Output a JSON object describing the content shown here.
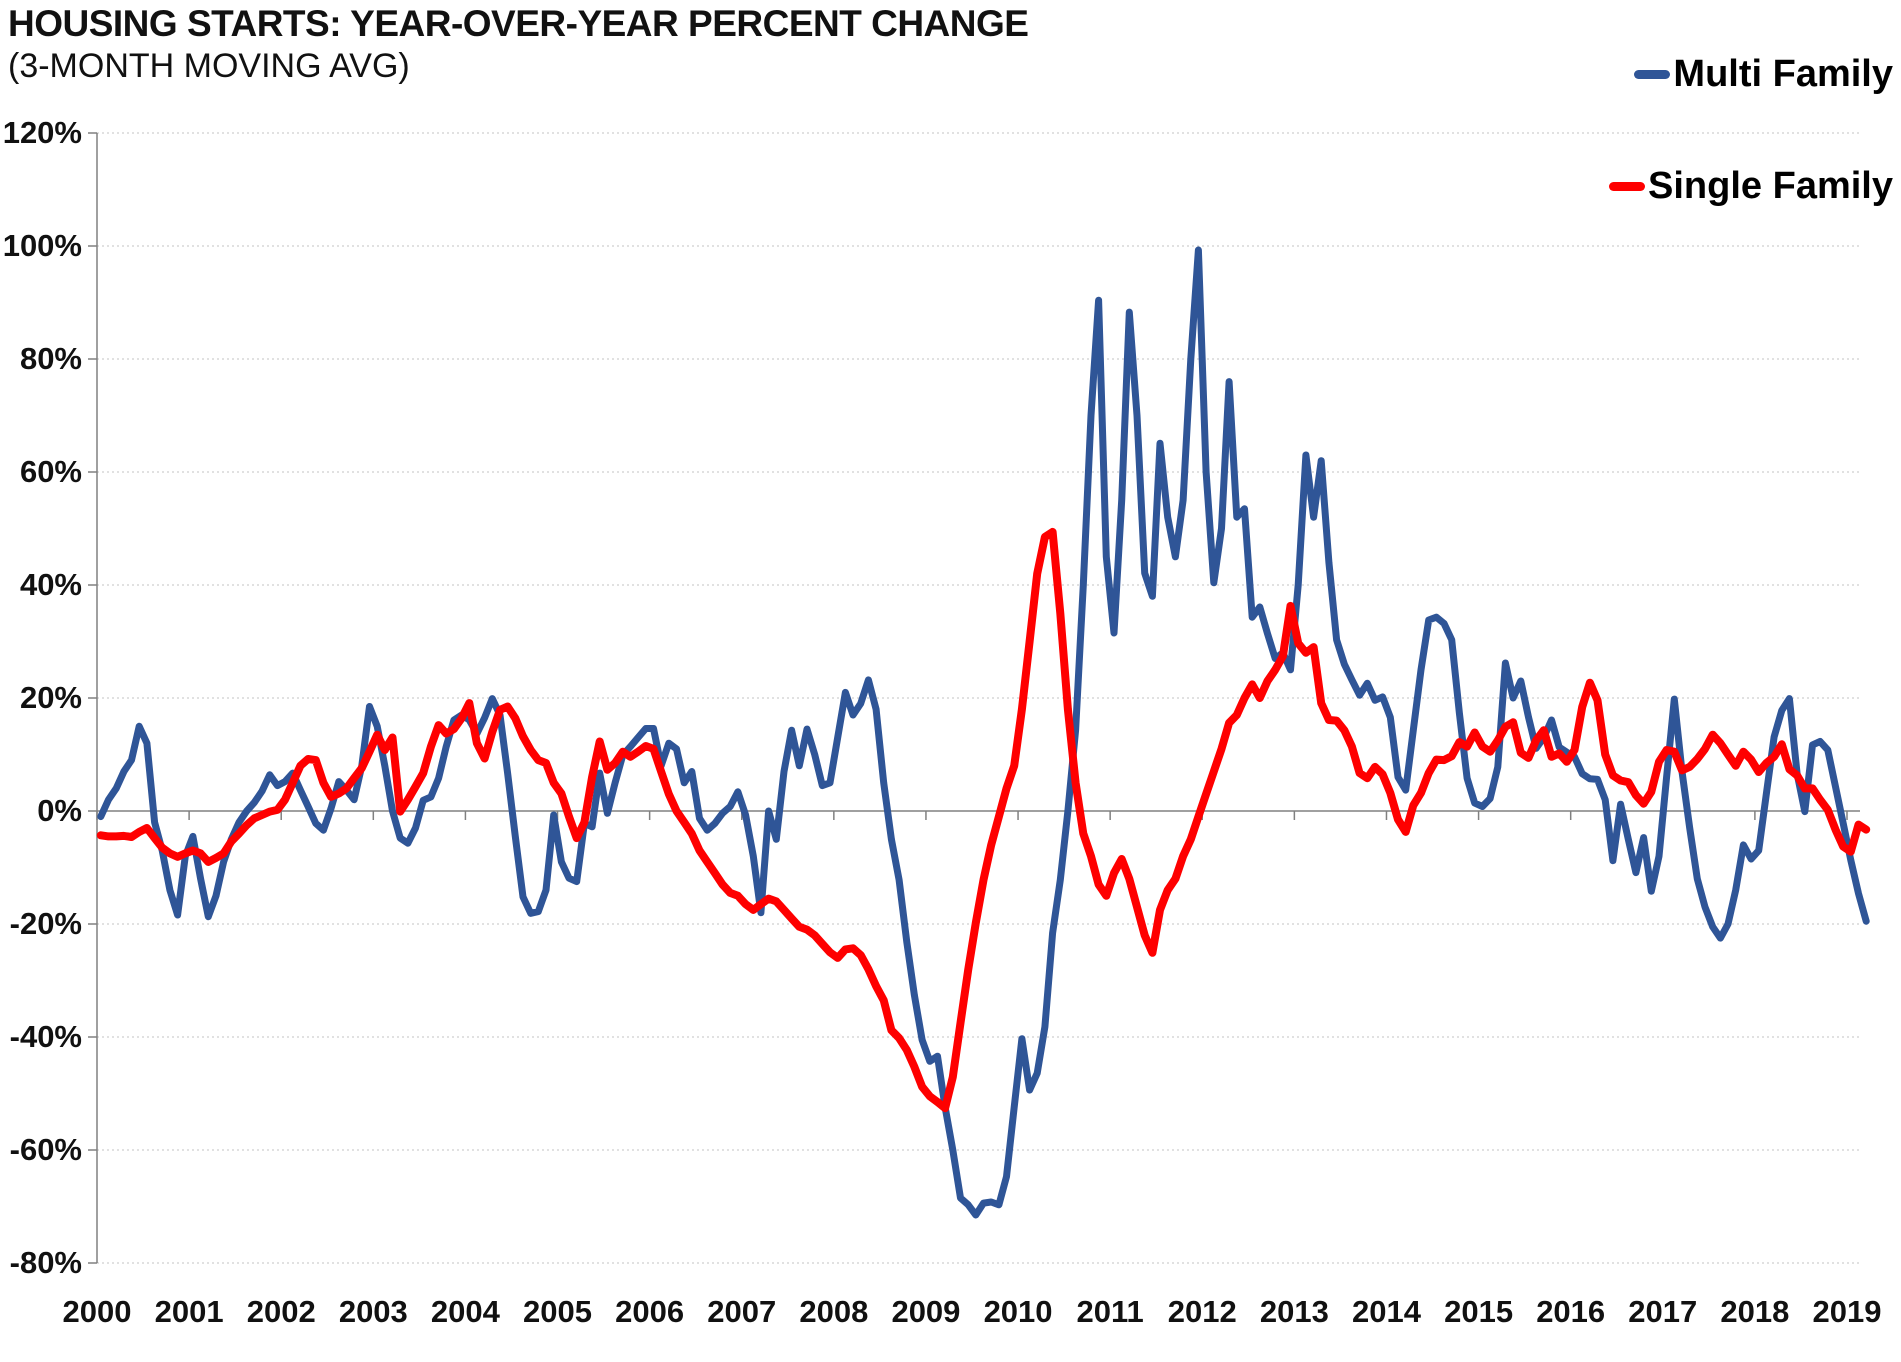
{
  "header": {
    "title": "HOUSING STARTS: YEAR-OVER-YEAR PERCENT CHANGE",
    "subtitle": "(3-MONTH MOVING AVG)"
  },
  "legend": {
    "items": [
      {
        "label": "Multi Family",
        "color": "#2F5597"
      },
      {
        "label": "Single Family",
        "color": "#FE0000"
      }
    ]
  },
  "chart_data": {
    "type": "line",
    "title": "HOUSING STARTS: YEAR-OVER-YEAR PERCENT CHANGE",
    "subtitle": "(3-MONTH MOVING AVG)",
    "x_frequency": "monthly",
    "x_start": "2000-01",
    "x_end": "2019-03",
    "x_tick_labels": [
      "2000",
      "2001",
      "2002",
      "2003",
      "2004",
      "2005",
      "2006",
      "2007",
      "2008",
      "2009",
      "2010",
      "2011",
      "2012",
      "2013",
      "2014",
      "2015",
      "2016",
      "2017",
      "2018",
      "2019"
    ],
    "y_tick_labels": [
      "120%",
      "100%",
      "80%",
      "60%",
      "40%",
      "20%",
      "0%",
      "-20%",
      "-40%",
      "-60%",
      "-80%"
    ],
    "y_tick_values": [
      120,
      100,
      80,
      60,
      40,
      20,
      0,
      -20,
      -40,
      -60,
      -80
    ],
    "ylim": [
      -80,
      120
    ],
    "grid": "horizontal-dotted",
    "zero_line": true,
    "legend_position": "top-right",
    "series": [
      {
        "name": "Multi Family",
        "color": "#2F5597",
        "width": 7,
        "values": [
          -1,
          2,
          4,
          7,
          9,
          15,
          12,
          -2,
          -7,
          -14,
          -18.4,
          -8,
          -4.5,
          -12,
          -18.7,
          -15,
          -9,
          -5,
          -2,
          0,
          1.5,
          3.5,
          6.4,
          4.5,
          5.2,
          6.7,
          3.7,
          0.8,
          -2.2,
          -3.4,
          0.5,
          5.2,
          3.7,
          2,
          8,
          18.5,
          15,
          8,
          0,
          -4.8,
          -5.7,
          -3,
          1.9,
          2.5,
          5.8,
          11.4,
          16.1,
          17,
          16.1,
          13.7,
          16.5,
          19.9,
          17,
          6.7,
          -4.5,
          -15.2,
          -18.1,
          -17.8,
          -14,
          -0.7,
          -9,
          -11.9,
          -12.5,
          -2.2,
          -2.8,
          6.7,
          -0.4,
          5,
          9.9,
          11.4,
          13,
          14.6,
          14.6,
          8,
          12,
          11,
          5,
          7,
          -1.3,
          -3.4,
          -2.2,
          -0.4,
          0.8,
          3.4,
          -0.7,
          -8,
          -18,
          0,
          -5,
          7,
          14.3,
          8,
          14.5,
          10,
          4.5,
          5,
          13,
          21,
          17,
          19,
          23.2,
          18,
          5,
          -5,
          -12.2,
          -23.2,
          -32.6,
          -40.5,
          -44.3,
          -43.4,
          -52.4,
          -60,
          -68.5,
          -69.7,
          -71.5,
          -69.4,
          -69.2,
          -69.7,
          -64.7,
          -52.4,
          -40.3,
          -49.4,
          -46.4,
          -38.2,
          -21.6,
          -12.2,
          0,
          14.3,
          40,
          70,
          90.4,
          45,
          31.5,
          55,
          88.3,
          70,
          42.1,
          38,
          65.1,
          52,
          45,
          55,
          80,
          99.3,
          60,
          40.4,
          50,
          76,
          52,
          53.5,
          34.3,
          36.1,
          31.4,
          27,
          28,
          25,
          40,
          63,
          52,
          62,
          44,
          30.3,
          26,
          23.2,
          20.5,
          22.6,
          19.6,
          20.2,
          16.6,
          6,
          3.7,
          14.3,
          25,
          33.8,
          34.3,
          33.2,
          30.3,
          17.3,
          5.8,
          1.4,
          0.8,
          2.2,
          7.8,
          26.2,
          20,
          23,
          16.6,
          11.1,
          13,
          16.1,
          11.3,
          10.4,
          9.6,
          6.6,
          5.7,
          5.6,
          2,
          -8.8,
          1.2,
          -5,
          -10.9,
          -4.7,
          -14.2,
          -8,
          6,
          19.8,
          7,
          -3,
          -12,
          -17,
          -20.5,
          -22.5,
          -20,
          -14,
          -6,
          -8.5,
          -7,
          3.1,
          13.1,
          17.8,
          19.9,
          6.6,
          -0.1,
          11.7,
          12.3,
          10.8,
          4.3,
          -2.2,
          -8.7,
          -14.6,
          -19.5
        ]
      },
      {
        "name": "Single Family",
        "color": "#FE0000",
        "width": 8,
        "values": [
          -4.3,
          -4.5,
          -4.5,
          -4.4,
          -4.6,
          -3.7,
          -3,
          -4.8,
          -6.5,
          -7.5,
          -8.1,
          -7.5,
          -7,
          -7.5,
          -9,
          -8.3,
          -7.5,
          -5.4,
          -4,
          -2.5,
          -1.3,
          -0.7,
          -0.1,
          0.2,
          2,
          5,
          8,
          9.2,
          9,
          5,
          2.5,
          3.1,
          4,
          5.8,
          7.6,
          10.5,
          13.5,
          10.8,
          13,
          -0.1,
          2,
          4.3,
          6.7,
          11.4,
          15.2,
          13.7,
          14.5,
          16.4,
          19.1,
          12,
          9.3,
          14,
          17.9,
          18.5,
          16.4,
          13.2,
          10.8,
          9,
          8.5,
          5,
          3.1,
          -1,
          -4.8,
          -2,
          6,
          12.3,
          7.3,
          8.5,
          10.5,
          9.6,
          10.5,
          11.5,
          11,
          7,
          3,
          0,
          -2,
          -4,
          -7,
          -9,
          -11,
          -13,
          -14.5,
          -15,
          -16.5,
          -17.5,
          -16.5,
          -15.5,
          -16,
          -17.5,
          -19,
          -20.5,
          -21,
          -22,
          -23.5,
          -25,
          -26,
          -24.5,
          -24.3,
          -25.5,
          -28,
          -31,
          -33.5,
          -38.8,
          -40.2,
          -42.3,
          -45.3,
          -48.8,
          -50.5,
          -51.5,
          -52.6,
          -47.1,
          -37.5,
          -28.1,
          -19.8,
          -12.2,
          -6,
          -1,
          4,
          8,
          18,
          30,
          42,
          48.5,
          49.4,
          35,
          18,
          5,
          -4,
          -8,
          -13,
          -15,
          -11,
          -8.5,
          -12,
          -17,
          -22,
          -25.1,
          -17.5,
          -14,
          -12,
          -8,
          -5,
          -1,
          3,
          7,
          11,
          15.6,
          17,
          20,
          22.4,
          20,
          23,
          25,
          27.4,
          36.3,
          29.7,
          28,
          29,
          19.1,
          16.1,
          16,
          14.3,
          11.4,
          6.7,
          5.8,
          7.8,
          6.5,
          3.2,
          -1.5,
          -3.7,
          1,
          3.2,
          6.7,
          9.1,
          9,
          9.7,
          12.2,
          11.4,
          13.9,
          11.4,
          10.5,
          12.5,
          14.9,
          15.7,
          10.3,
          9.4,
          12.5,
          14.3,
          9.6,
          10.2,
          8.7,
          10.8,
          18.4,
          22.7,
          19.6,
          10,
          6.3,
          5.4,
          5.1,
          2.8,
          1.3,
          3.4,
          8.7,
          10.8,
          10.5,
          7.2,
          7.8,
          9.2,
          11,
          13.5,
          12,
          10,
          8,
          10.5,
          9.1,
          6.9,
          8.5,
          9.6,
          11.8,
          7.4,
          6.3,
          4,
          4,
          2,
          0.2,
          -3.3,
          -6.3,
          -7.2,
          -2.4,
          -3.3
        ]
      }
    ]
  }
}
